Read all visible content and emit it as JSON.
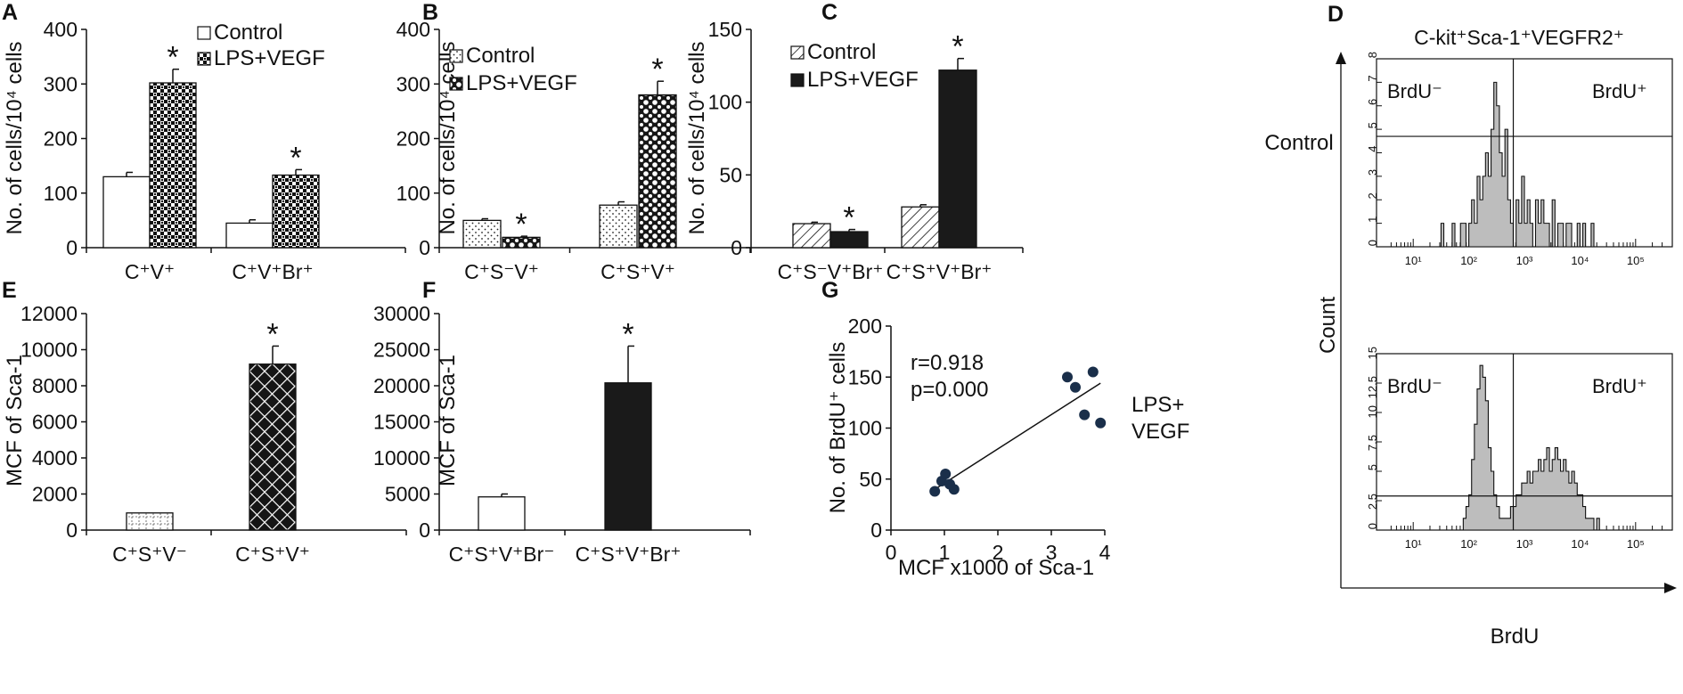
{
  "figure_colors": {
    "axis": "#111111",
    "bar_dark": "#1a1a1a",
    "flow_fill": "#bdbdbd",
    "dot": "#1a2f4a"
  },
  "chart_data": [
    {
      "panel": "A",
      "type": "bar",
      "ylabel": "No. of cells/10⁴ cells",
      "ylim": [
        0,
        400
      ],
      "yticks": [
        0,
        100,
        200,
        300,
        400
      ],
      "categories": [
        "C⁺V⁺",
        "C⁺V⁺Br⁺"
      ],
      "series": [
        {
          "name": "Control",
          "pattern": "white",
          "values": [
            130,
            45
          ],
          "errors": [
            8,
            6
          ]
        },
        {
          "name": "LPS+VEGF",
          "pattern": "check",
          "values": [
            302,
            133
          ],
          "errors": [
            25,
            10
          ]
        }
      ],
      "asterisks": [
        [
          0,
          1
        ],
        [
          1,
          1
        ]
      ],
      "legend": "top-right"
    },
    {
      "panel": "B",
      "type": "bar",
      "ylabel": "No. of cells/10⁴ cells",
      "ylim": [
        0,
        400
      ],
      "yticks": [
        0,
        100,
        200,
        300,
        400
      ],
      "categories": [
        "C⁺S⁻V⁺",
        "C⁺S⁺V⁺"
      ],
      "series": [
        {
          "name": "Control",
          "pattern": "dots",
          "values": [
            50,
            78
          ],
          "errors": [
            3,
            6
          ]
        },
        {
          "name": "LPS+VEGF",
          "pattern": "scales",
          "values": [
            19,
            280
          ],
          "errors": [
            2,
            25
          ]
        }
      ],
      "asterisks": [
        [
          0,
          1
        ],
        [
          1,
          1
        ]
      ],
      "legend": "top-left"
    },
    {
      "panel": "C",
      "type": "bar",
      "ylabel": "No. of cells/10⁴ cells",
      "ylim": [
        0,
        150
      ],
      "yticks": [
        0,
        50,
        100,
        150
      ],
      "categories": [
        "C⁺S⁻V⁺Br⁺",
        "C⁺S⁺V⁺Br⁺"
      ],
      "series": [
        {
          "name": "Control",
          "pattern": "hatch",
          "values": [
            16.5,
            28
          ],
          "errors": [
            1,
            1.5
          ]
        },
        {
          "name": "LPS+VEGF",
          "pattern": "black",
          "values": [
            11,
            122
          ],
          "errors": [
            1.5,
            8
          ]
        }
      ],
      "asterisks": [
        [
          0,
          1
        ],
        [
          1,
          1
        ]
      ],
      "legend": "top-left"
    },
    {
      "panel": "E",
      "type": "bar",
      "ylabel": "MCF of Sca-1",
      "ylim": [
        0,
        12000
      ],
      "yticks": [
        0,
        2000,
        4000,
        6000,
        8000,
        10000,
        12000
      ],
      "categories": [
        "C⁺S⁺V⁻",
        "C⁺S⁺V⁺"
      ],
      "series": [
        {
          "name": "",
          "patterns": [
            "dashgrid",
            "crosshatch"
          ],
          "values": [
            950,
            9200
          ],
          "errors": [
            0,
            1000
          ]
        }
      ],
      "asterisks": [
        [
          1,
          0
        ]
      ]
    },
    {
      "panel": "F",
      "type": "bar",
      "ylabel": "MCF of Sca-1",
      "ylim": [
        0,
        30000
      ],
      "yticks": [
        0,
        5000,
        10000,
        15000,
        20000,
        25000,
        30000
      ],
      "categories": [
        "C⁺S⁺V⁺Br⁻",
        "C⁺S⁺V⁺Br⁺"
      ],
      "series": [
        {
          "name": "",
          "patterns": [
            "white",
            "black"
          ],
          "values": [
            4600,
            20400
          ],
          "errors": [
            400,
            5100
          ]
        }
      ],
      "asterisks": [
        [
          1,
          0
        ]
      ]
    },
    {
      "panel": "G",
      "type": "scatter",
      "xlabel": "MCF x1000 of Sca-1",
      "ylabel": "No. of BrdU⁺ cells",
      "xlim": [
        0,
        4
      ],
      "xticks": [
        0,
        1,
        2,
        3,
        4
      ],
      "ylim": [
        0,
        200
      ],
      "yticks": [
        0,
        50,
        100,
        150,
        200
      ],
      "points": [
        [
          0.82,
          38
        ],
        [
          0.95,
          48
        ],
        [
          1.02,
          55
        ],
        [
          1.1,
          45
        ],
        [
          1.18,
          40
        ],
        [
          3.3,
          150
        ],
        [
          3.45,
          140
        ],
        [
          3.62,
          113
        ],
        [
          3.78,
          155
        ],
        [
          3.92,
          105
        ]
      ],
      "fit_line": [
        [
          0.82,
          40
        ],
        [
          3.92,
          144
        ]
      ],
      "annotations": [
        "r=0.918",
        "p=0.000"
      ],
      "group_label": [
        "LPS+",
        "VEGF"
      ]
    },
    {
      "panel": "D",
      "type": "histogram",
      "title": "C-kit⁺Sca-1⁺VEGFR2⁺",
      "xlabel": "BrdU",
      "ylabel": "Count",
      "x_decades": [
        "10¹",
        "10²",
        "10³",
        "10⁴",
        "10⁵"
      ],
      "subpanels": [
        {
          "label": "Control",
          "ymax": 8,
          "yticks": [
            "0",
            "1",
            "2",
            "3",
            "4",
            "5",
            "6",
            "7",
            "8"
          ],
          "gate_labels": [
            "BrdU⁻",
            "BrdU⁺"
          ],
          "gate_x": 2.8,
          "gate_y": 4.7,
          "bins_from": 1.5,
          "bin_width": 0.05,
          "counts": [
            1,
            0,
            0,
            0,
            1,
            0,
            0,
            1,
            1,
            0,
            1,
            2,
            1,
            3,
            2,
            3,
            4,
            3,
            5,
            7,
            6,
            4,
            3,
            5,
            2,
            1,
            0,
            2,
            1,
            3,
            1,
            2,
            1,
            0,
            2,
            1,
            2,
            1,
            1,
            0,
            2,
            0,
            1,
            1,
            0,
            1,
            1,
            0,
            0,
            1,
            0,
            1,
            0,
            0,
            1
          ]
        },
        {
          "label": "",
          "ymax": 15,
          "yticks": [
            "0",
            "2.5",
            "5",
            "7.5",
            "10",
            "12.5",
            "15"
          ],
          "gate_labels": [
            "BrdU⁻",
            "BrdU⁺"
          ],
          "gate_x": 2.8,
          "gate_y": 2.9,
          "bins_from": 1.9,
          "bin_width": 0.05,
          "counts": [
            1,
            2,
            3,
            6,
            9,
            12,
            14,
            13,
            11,
            7,
            5,
            3,
            2,
            1,
            1,
            1,
            1,
            2,
            2,
            3,
            3,
            4,
            4,
            5,
            4,
            5,
            5,
            6,
            5,
            6,
            7,
            5,
            6,
            7,
            6,
            5,
            6,
            5,
            4,
            5,
            4,
            3,
            3,
            2,
            1,
            1,
            1,
            0,
            1
          ]
        }
      ]
    }
  ],
  "panel_labels": [
    "A",
    "B",
    "C",
    "D",
    "E",
    "F",
    "G"
  ]
}
